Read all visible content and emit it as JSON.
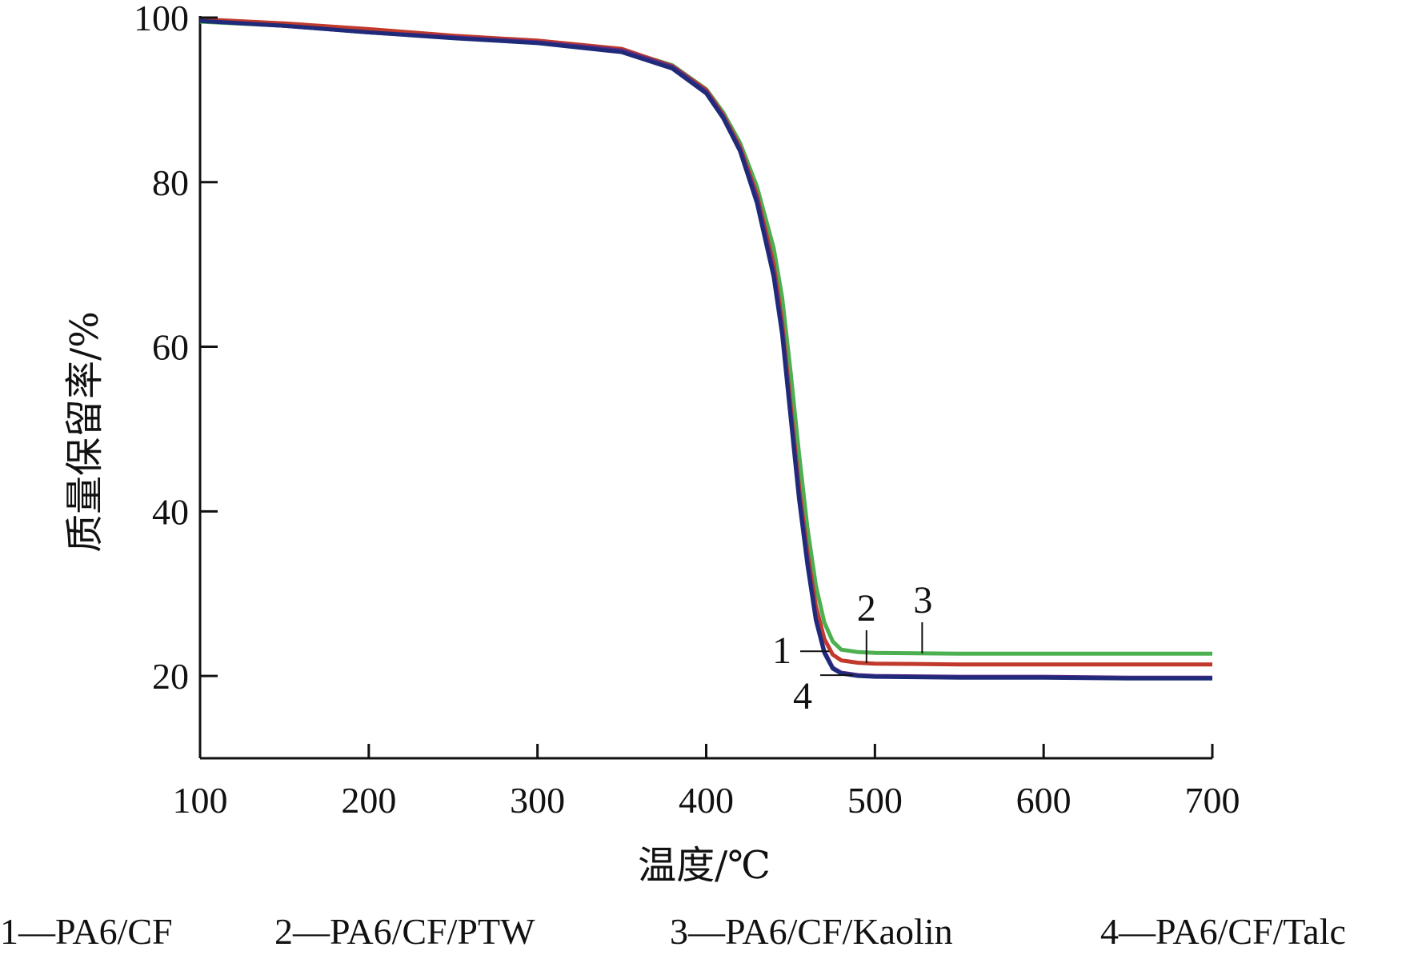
{
  "chart_data": {
    "type": "line",
    "title": "",
    "xlabel": "温度/℃",
    "ylabel": "质量保留率/%",
    "xlim": [
      100,
      700
    ],
    "ylim": [
      10,
      100
    ],
    "xticks": [
      100,
      200,
      300,
      400,
      500,
      600,
      700
    ],
    "yticks": [
      20,
      40,
      60,
      80,
      100
    ],
    "xtick_labels": [
      "100",
      "200",
      "300",
      "400",
      "500",
      "600",
      "700"
    ],
    "ytick_labels": [
      "20",
      "40",
      "60",
      "80",
      "100"
    ],
    "grid": false,
    "legend_placement": "bottom",
    "series": [
      {
        "name": "1—PA6/CF",
        "label": "1",
        "color": "#5b2a86",
        "points": [
          [
            100,
            99.6
          ],
          [
            150,
            99.0
          ],
          [
            200,
            98.2
          ],
          [
            250,
            97.6
          ],
          [
            300,
            97.0
          ],
          [
            350,
            96.0
          ],
          [
            380,
            94.0
          ],
          [
            400,
            91.0
          ],
          [
            410,
            88.0
          ],
          [
            420,
            84.0
          ],
          [
            430,
            78.0
          ],
          [
            440,
            69.0
          ],
          [
            445,
            62.0
          ],
          [
            450,
            52.0
          ],
          [
            455,
            42.0
          ],
          [
            460,
            34.0
          ],
          [
            465,
            27.0
          ],
          [
            470,
            23.0
          ],
          [
            475,
            21.0
          ],
          [
            480,
            20.4
          ],
          [
            490,
            20.1
          ],
          [
            500,
            20.0
          ],
          [
            550,
            19.9
          ],
          [
            600,
            19.9
          ],
          [
            650,
            19.8
          ],
          [
            700,
            19.8
          ]
        ]
      },
      {
        "name": "2—PA6/CF/PTW",
        "label": "2",
        "color": "#c0392b",
        "points": [
          [
            100,
            99.8
          ],
          [
            150,
            99.3
          ],
          [
            200,
            98.6
          ],
          [
            250,
            97.8
          ],
          [
            300,
            97.2
          ],
          [
            350,
            96.2
          ],
          [
            380,
            94.1
          ],
          [
            400,
            91.2
          ],
          [
            410,
            88.2
          ],
          [
            420,
            84.3
          ],
          [
            430,
            78.5
          ],
          [
            440,
            70.0
          ],
          [
            445,
            63.0
          ],
          [
            450,
            53.0
          ],
          [
            455,
            43.0
          ],
          [
            460,
            35.0
          ],
          [
            465,
            28.5
          ],
          [
            470,
            24.5
          ],
          [
            475,
            22.6
          ],
          [
            480,
            21.9
          ],
          [
            490,
            21.6
          ],
          [
            500,
            21.5
          ],
          [
            550,
            21.4
          ],
          [
            600,
            21.4
          ],
          [
            650,
            21.4
          ],
          [
            700,
            21.4
          ]
        ]
      },
      {
        "name": "3—PA6/CF/Kaolin",
        "label": "3",
        "color": "#4caf50",
        "points": [
          [
            100,
            99.5
          ],
          [
            150,
            99.0
          ],
          [
            200,
            98.3
          ],
          [
            250,
            97.7
          ],
          [
            300,
            97.1
          ],
          [
            350,
            96.1
          ],
          [
            380,
            94.2
          ],
          [
            400,
            91.3
          ],
          [
            410,
            88.5
          ],
          [
            420,
            84.8
          ],
          [
            430,
            79.5
          ],
          [
            440,
            72.0
          ],
          [
            445,
            66.0
          ],
          [
            450,
            57.0
          ],
          [
            455,
            47.0
          ],
          [
            460,
            38.0
          ],
          [
            465,
            31.0
          ],
          [
            470,
            26.5
          ],
          [
            475,
            24.2
          ],
          [
            480,
            23.2
          ],
          [
            490,
            22.9
          ],
          [
            500,
            22.8
          ],
          [
            550,
            22.7
          ],
          [
            600,
            22.7
          ],
          [
            650,
            22.7
          ],
          [
            700,
            22.7
          ]
        ]
      },
      {
        "name": "4—PA6/CF/Talc",
        "label": "4",
        "color": "#1f2a7a",
        "points": [
          [
            100,
            99.6
          ],
          [
            150,
            99.0
          ],
          [
            200,
            98.2
          ],
          [
            250,
            97.5
          ],
          [
            300,
            96.9
          ],
          [
            350,
            95.8
          ],
          [
            380,
            93.8
          ],
          [
            400,
            90.8
          ],
          [
            410,
            87.8
          ],
          [
            420,
            83.8
          ],
          [
            430,
            77.5
          ],
          [
            440,
            68.5
          ],
          [
            445,
            61.5
          ],
          [
            450,
            51.5
          ],
          [
            455,
            41.5
          ],
          [
            460,
            33.5
          ],
          [
            465,
            26.8
          ],
          [
            470,
            22.8
          ],
          [
            475,
            20.9
          ],
          [
            480,
            20.3
          ],
          [
            490,
            20.0
          ],
          [
            500,
            19.9
          ],
          [
            550,
            19.8
          ],
          [
            600,
            19.8
          ],
          [
            650,
            19.7
          ],
          [
            700,
            19.7
          ]
        ]
      }
    ],
    "annotations": [
      {
        "text": "1",
        "series": 0
      },
      {
        "text": "2",
        "series": 1
      },
      {
        "text": "3",
        "series": 2
      },
      {
        "text": "4",
        "series": 3
      }
    ],
    "legend": [
      "1—PA6/CF",
      "2—PA6/CF/PTW",
      "3—PA6/CF/Kaolin",
      "4—PA6/CF/Talc"
    ]
  }
}
